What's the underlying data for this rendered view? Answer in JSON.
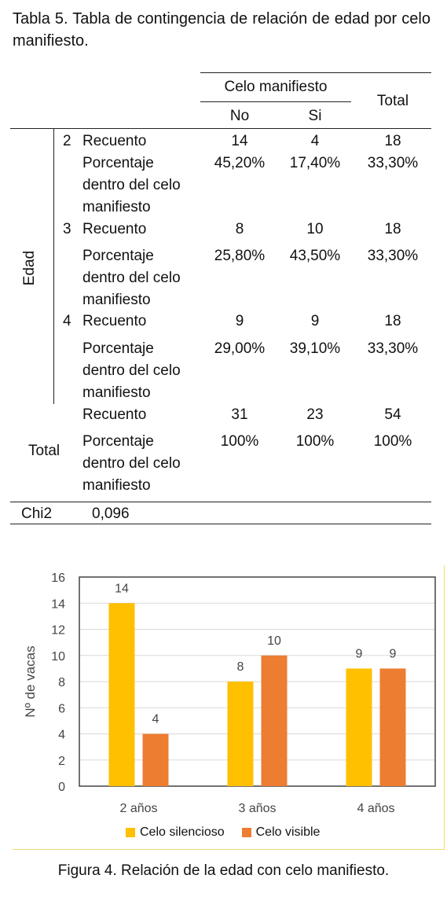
{
  "table": {
    "caption": "Tabla 5. Tabla de contingencia de relación de edad por celo manifiesto.",
    "header": {
      "group": "Celo manifiesto",
      "no": "No",
      "si": "Si",
      "total": "Total"
    },
    "row_group_label": "Edad",
    "rows": [
      {
        "edad": "2",
        "recuento_label": "Recuento",
        "recuento": [
          "14",
          "4",
          "18"
        ],
        "pct_label": [
          "Porcentaje",
          "dentro del celo",
          "manifiesto"
        ],
        "pct": [
          "45,20%",
          "17,40%",
          "33,30%"
        ]
      },
      {
        "edad": "3",
        "recuento_label": "Recuento",
        "recuento": [
          "8",
          "10",
          "18"
        ],
        "pct_label": [
          "Porcentaje",
          "dentro del celo",
          "manifiesto"
        ],
        "pct": [
          "25,80%",
          "43,50%",
          "33,30%"
        ]
      },
      {
        "edad": "4",
        "recuento_label": "Recuento",
        "recuento": [
          "9",
          "9",
          "18"
        ],
        "pct_label": [
          "Porcentaje",
          "dentro del celo",
          "manifiesto"
        ],
        "pct": [
          "29,00%",
          "39,10%",
          "33,30%"
        ]
      }
    ],
    "total": {
      "label": "Total",
      "recuento_label": "Recuento",
      "recuento": [
        "31",
        "23",
        "54"
      ],
      "pct_label": [
        "Porcentaje",
        "dentro del celo",
        "manifiesto"
      ],
      "pct": [
        "100%",
        "100%",
        "100%"
      ]
    },
    "chi2": {
      "label": "Chi2",
      "value": "0,096"
    }
  },
  "chart_data": {
    "type": "bar",
    "categories": [
      "2 años",
      "3 años",
      "4 años"
    ],
    "series": [
      {
        "name": "Celo silencioso",
        "values": [
          14,
          8,
          9
        ],
        "color": "#FFC000"
      },
      {
        "name": "Celo visible",
        "values": [
          4,
          10,
          9
        ],
        "color": "#ED7D31"
      }
    ],
    "ylabel": "Nº de vacas",
    "xlabel": "",
    "ylim": [
      0,
      16
    ],
    "yticks": [
      "0",
      "2",
      "4",
      "6",
      "8",
      "10",
      "12",
      "14",
      "16"
    ],
    "grid": true,
    "legend": "bottom",
    "title": ""
  },
  "figure_caption": "Figura 4. Relación de la edad con celo manifiesto."
}
